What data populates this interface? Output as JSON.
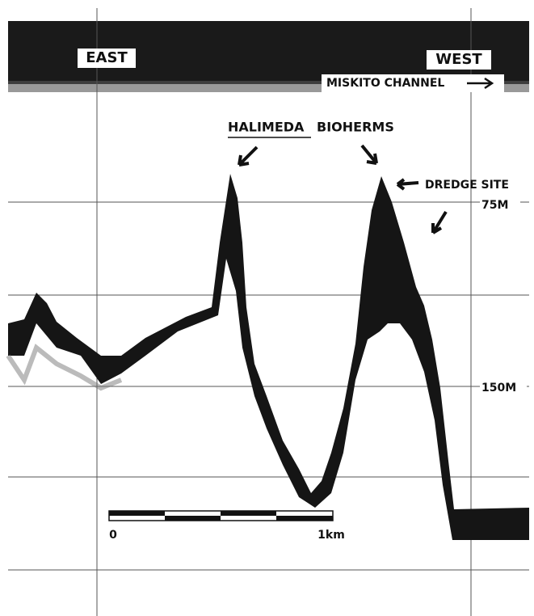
{
  "labels": {
    "east": "EAST",
    "west": "WEST",
    "channel": "MISKITO CHANNEL",
    "bioherms_genus": "HALIMEDA",
    "bioherms": "BIOHERMS",
    "dredge": "DREDGE SITE"
  },
  "depth_labels": [
    "75M",
    "150M"
  ],
  "scale_bar": {
    "start": "0",
    "end": "1km"
  }
}
